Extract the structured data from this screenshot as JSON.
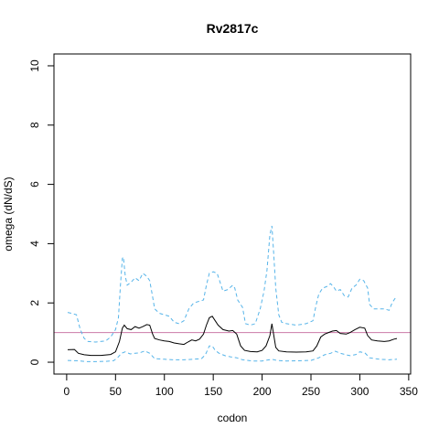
{
  "chart_data": {
    "type": "line",
    "title": "Rv2817c",
    "xlabel": "codon",
    "ylabel": "omega (dN/dS)",
    "xlim": [
      -13,
      352
    ],
    "ylim": [
      -0.4,
      10.4
    ],
    "x_ticks": [
      "0",
      "50",
      "100",
      "150",
      "200",
      "250",
      "300",
      "350"
    ],
    "y_ticks": [
      "0",
      "2",
      "4",
      "6",
      "8",
      "10"
    ],
    "reference_line": {
      "y": 1,
      "color": "#cc79a7"
    },
    "series": [
      {
        "role": "upper_bound",
        "color": "#56b4e9",
        "style": "dashed",
        "points": [
          [
            1,
            1.68
          ],
          [
            5,
            1.65
          ],
          [
            10,
            1.6
          ],
          [
            14,
            1.1
          ],
          [
            18,
            0.8
          ],
          [
            22,
            0.7
          ],
          [
            30,
            0.68
          ],
          [
            40,
            0.72
          ],
          [
            45,
            0.85
          ],
          [
            50,
            1.1
          ],
          [
            53,
            1.5
          ],
          [
            55,
            2.6
          ],
          [
            57,
            3.5
          ],
          [
            58,
            3.55
          ],
          [
            60,
            2.9
          ],
          [
            62,
            2.6
          ],
          [
            66,
            2.7
          ],
          [
            70,
            2.85
          ],
          [
            74,
            2.75
          ],
          [
            78,
            3.0
          ],
          [
            82,
            2.9
          ],
          [
            85,
            2.75
          ],
          [
            88,
            2.2
          ],
          [
            90,
            1.8
          ],
          [
            95,
            1.65
          ],
          [
            100,
            1.6
          ],
          [
            105,
            1.55
          ],
          [
            110,
            1.35
          ],
          [
            115,
            1.3
          ],
          [
            120,
            1.4
          ],
          [
            125,
            1.8
          ],
          [
            130,
            2.0
          ],
          [
            135,
            2.05
          ],
          [
            140,
            2.1
          ],
          [
            143,
            2.6
          ],
          [
            146,
            3.0
          ],
          [
            150,
            3.05
          ],
          [
            154,
            3.0
          ],
          [
            157,
            2.7
          ],
          [
            160,
            2.4
          ],
          [
            165,
            2.45
          ],
          [
            170,
            2.6
          ],
          [
            172,
            2.5
          ],
          [
            175,
            2.1
          ],
          [
            180,
            1.85
          ],
          [
            183,
            1.3
          ],
          [
            188,
            1.25
          ],
          [
            193,
            1.3
          ],
          [
            198,
            1.8
          ],
          [
            202,
            2.4
          ],
          [
            205,
            3.1
          ],
          [
            208,
            4.3
          ],
          [
            210,
            4.6
          ],
          [
            212,
            3.6
          ],
          [
            214,
            2.5
          ],
          [
            217,
            1.6
          ],
          [
            220,
            1.35
          ],
          [
            225,
            1.3
          ],
          [
            235,
            1.25
          ],
          [
            245,
            1.3
          ],
          [
            252,
            1.4
          ],
          [
            255,
            1.9
          ],
          [
            258,
            2.3
          ],
          [
            262,
            2.5
          ],
          [
            266,
            2.55
          ],
          [
            270,
            2.65
          ],
          [
            273,
            2.55
          ],
          [
            276,
            2.4
          ],
          [
            280,
            2.45
          ],
          [
            284,
            2.25
          ],
          [
            288,
            2.2
          ],
          [
            292,
            2.5
          ],
          [
            296,
            2.6
          ],
          [
            300,
            2.8
          ],
          [
            304,
            2.75
          ],
          [
            308,
            2.5
          ],
          [
            310,
            1.95
          ],
          [
            314,
            1.8
          ],
          [
            320,
            1.8
          ],
          [
            325,
            1.8
          ],
          [
            330,
            1.75
          ],
          [
            333,
            2.0
          ],
          [
            337,
            2.2
          ]
        ]
      },
      {
        "role": "estimate",
        "color": "#000000",
        "style": "solid",
        "points": [
          [
            1,
            0.42
          ],
          [
            8,
            0.43
          ],
          [
            12,
            0.3
          ],
          [
            18,
            0.25
          ],
          [
            25,
            0.23
          ],
          [
            35,
            0.23
          ],
          [
            45,
            0.26
          ],
          [
            50,
            0.35
          ],
          [
            54,
            0.7
          ],
          [
            57,
            1.15
          ],
          [
            59,
            1.25
          ],
          [
            62,
            1.13
          ],
          [
            66,
            1.1
          ],
          [
            70,
            1.2
          ],
          [
            74,
            1.15
          ],
          [
            78,
            1.2
          ],
          [
            82,
            1.27
          ],
          [
            85,
            1.25
          ],
          [
            88,
            0.95
          ],
          [
            90,
            0.8
          ],
          [
            95,
            0.75
          ],
          [
            100,
            0.72
          ],
          [
            105,
            0.7
          ],
          [
            110,
            0.65
          ],
          [
            115,
            0.62
          ],
          [
            120,
            0.6
          ],
          [
            124,
            0.68
          ],
          [
            128,
            0.75
          ],
          [
            132,
            0.72
          ],
          [
            136,
            0.78
          ],
          [
            140,
            0.95
          ],
          [
            143,
            1.25
          ],
          [
            146,
            1.5
          ],
          [
            149,
            1.55
          ],
          [
            152,
            1.4
          ],
          [
            155,
            1.25
          ],
          [
            160,
            1.1
          ],
          [
            166,
            1.05
          ],
          [
            170,
            1.07
          ],
          [
            174,
            0.95
          ],
          [
            178,
            0.55
          ],
          [
            182,
            0.4
          ],
          [
            188,
            0.36
          ],
          [
            195,
            0.35
          ],
          [
            200,
            0.4
          ],
          [
            204,
            0.55
          ],
          [
            208,
            0.9
          ],
          [
            210,
            1.3
          ],
          [
            212,
            0.9
          ],
          [
            214,
            0.5
          ],
          [
            217,
            0.38
          ],
          [
            225,
            0.35
          ],
          [
            235,
            0.34
          ],
          [
            245,
            0.35
          ],
          [
            252,
            0.38
          ],
          [
            256,
            0.55
          ],
          [
            260,
            0.85
          ],
          [
            264,
            0.95
          ],
          [
            268,
            1.0
          ],
          [
            272,
            1.05
          ],
          [
            276,
            1.07
          ],
          [
            280,
            0.97
          ],
          [
            286,
            0.95
          ],
          [
            290,
            1.0
          ],
          [
            295,
            1.1
          ],
          [
            300,
            1.18
          ],
          [
            305,
            1.15
          ],
          [
            308,
            0.9
          ],
          [
            312,
            0.75
          ],
          [
            318,
            0.72
          ],
          [
            325,
            0.7
          ],
          [
            330,
            0.72
          ],
          [
            335,
            0.78
          ],
          [
            338,
            0.8
          ]
        ]
      },
      {
        "role": "lower_bound",
        "color": "#56b4e9",
        "style": "dashed",
        "points": [
          [
            1,
            0.06
          ],
          [
            10,
            0.05
          ],
          [
            20,
            0.02
          ],
          [
            30,
            0.02
          ],
          [
            40,
            0.03
          ],
          [
            48,
            0.05
          ],
          [
            52,
            0.15
          ],
          [
            56,
            0.3
          ],
          [
            60,
            0.35
          ],
          [
            65,
            0.28
          ],
          [
            70,
            0.3
          ],
          [
            75,
            0.32
          ],
          [
            80,
            0.38
          ],
          [
            85,
            0.3
          ],
          [
            90,
            0.12
          ],
          [
            100,
            0.1
          ],
          [
            110,
            0.08
          ],
          [
            120,
            0.08
          ],
          [
            130,
            0.1
          ],
          [
            138,
            0.12
          ],
          [
            142,
            0.25
          ],
          [
            146,
            0.55
          ],
          [
            149,
            0.55
          ],
          [
            152,
            0.4
          ],
          [
            156,
            0.3
          ],
          [
            162,
            0.22
          ],
          [
            168,
            0.18
          ],
          [
            174,
            0.15
          ],
          [
            180,
            0.08
          ],
          [
            190,
            0.04
          ],
          [
            200,
            0.04
          ],
          [
            205,
            0.07
          ],
          [
            210,
            0.1
          ],
          [
            215,
            0.06
          ],
          [
            225,
            0.04
          ],
          [
            240,
            0.05
          ],
          [
            250,
            0.06
          ],
          [
            258,
            0.15
          ],
          [
            264,
            0.25
          ],
          [
            270,
            0.3
          ],
          [
            275,
            0.37
          ],
          [
            280,
            0.3
          ],
          [
            286,
            0.25
          ],
          [
            290,
            0.22
          ],
          [
            296,
            0.26
          ],
          [
            300,
            0.35
          ],
          [
            305,
            0.32
          ],
          [
            310,
            0.15
          ],
          [
            320,
            0.1
          ],
          [
            330,
            0.08
          ],
          [
            338,
            0.1
          ]
        ]
      }
    ]
  }
}
